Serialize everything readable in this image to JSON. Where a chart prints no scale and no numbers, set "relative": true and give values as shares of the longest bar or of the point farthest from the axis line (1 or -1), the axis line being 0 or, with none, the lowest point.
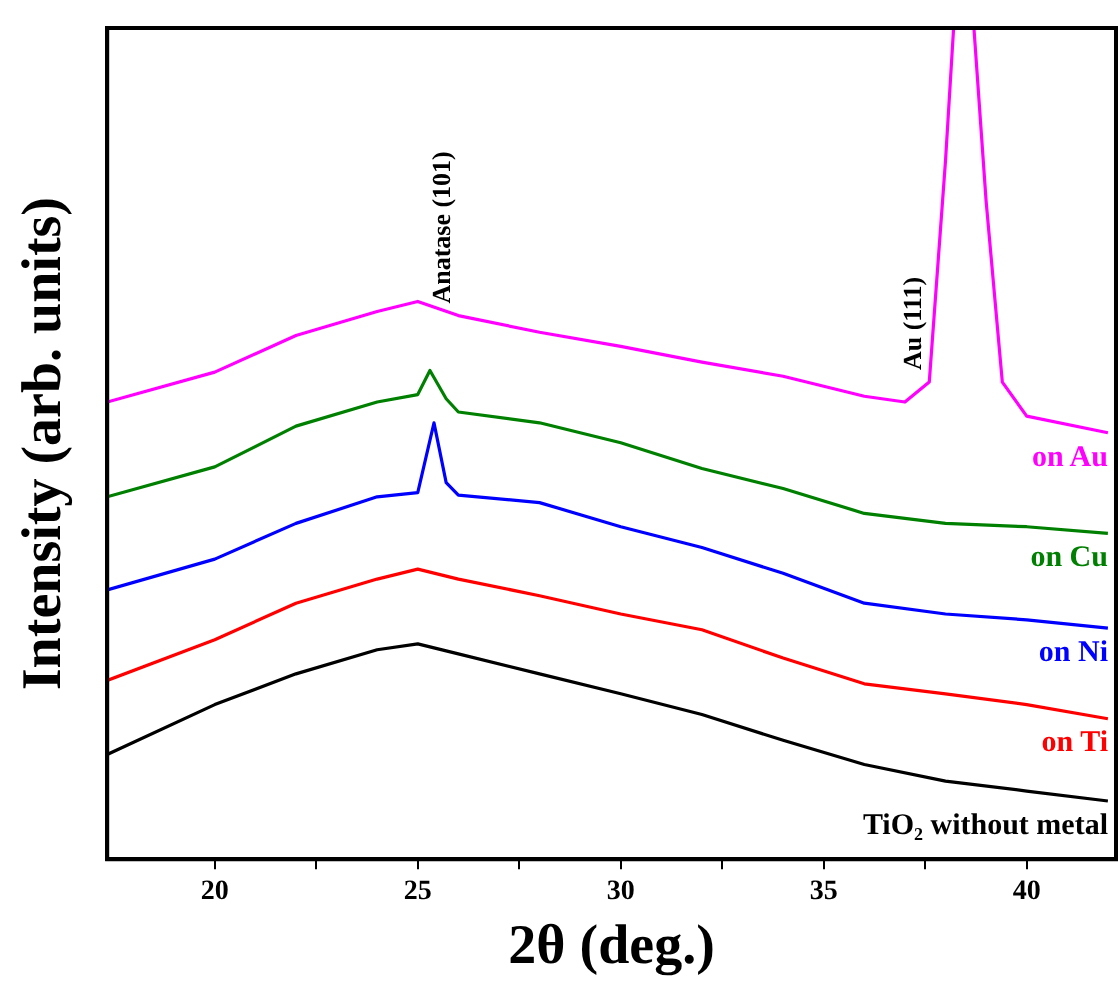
{
  "chart_data": {
    "type": "line",
    "relative": true,
    "xlabel": "2θ (deg.)",
    "ylabel": "Intensity (arb. units)",
    "xlim": [
      17.35,
      42.2
    ],
    "xticks": [
      20,
      {
        "value": 22.5,
        "label": null
      },
      25,
      {
        "value": 27.5,
        "label": null
      },
      30,
      {
        "value": 32.5,
        "label": null
      },
      35,
      {
        "value": 37.5,
        "label": null
      },
      40
    ],
    "tick_labels": "x",
    "grid": false,
    "legend": false,
    "marker": "none",
    "line_style": "solid",
    "annotations": [
      {
        "text": "Anatase (101)",
        "x": 26,
        "y": 0.654
      },
      {
        "text": "Au (111)",
        "x": 37.6,
        "y": 0.574
      }
    ],
    "series": [
      {
        "name": "on Au",
        "color": "#ff00ff",
        "x": [
          17.35,
          20,
          22,
          24,
          25,
          26,
          28,
          30,
          32,
          34,
          36,
          37,
          37.6,
          38,
          38.2,
          38.7,
          39,
          39.4,
          40,
          42
        ],
        "values": [
          0.55,
          0.586,
          0.63,
          0.659,
          0.671,
          0.654,
          0.634,
          0.617,
          0.598,
          0.581,
          0.557,
          0.55,
          0.574,
          0.84,
          1,
          1,
          0.792,
          0.574,
          0.533,
          0.513
        ]
      },
      {
        "name": "on Cu",
        "color": "#008000",
        "x": [
          17.35,
          20,
          22,
          24,
          25,
          25.3,
          25.7,
          26,
          28,
          30,
          32,
          34,
          36,
          38,
          40,
          42
        ],
        "values": [
          0.436,
          0.472,
          0.521,
          0.55,
          0.559,
          0.588,
          0.554,
          0.538,
          0.525,
          0.501,
          0.47,
          0.446,
          0.416,
          0.404,
          0.4,
          0.392
        ]
      },
      {
        "name": "on Ni",
        "color": "#0000ff",
        "x": [
          17.35,
          20,
          22,
          24,
          25,
          25.4,
          25.7,
          26,
          28,
          30,
          32,
          34,
          36,
          38,
          40,
          42
        ],
        "values": [
          0.324,
          0.361,
          0.404,
          0.436,
          0.441,
          0.525,
          0.453,
          0.438,
          0.429,
          0.4,
          0.375,
          0.344,
          0.308,
          0.295,
          0.288,
          0.278
        ]
      },
      {
        "name": "on Ti",
        "color": "#ff0000",
        "x": [
          17.35,
          20,
          22,
          24,
          25,
          26,
          28,
          30,
          32,
          34,
          36,
          38,
          40,
          42
        ],
        "values": [
          0.215,
          0.264,
          0.308,
          0.337,
          0.349,
          0.337,
          0.317,
          0.295,
          0.276,
          0.242,
          0.211,
          0.199,
          0.186,
          0.169
        ]
      },
      {
        "name": "TiO₂ without metal",
        "color": "#000000",
        "x": [
          17.35,
          20,
          22,
          24,
          25,
          26,
          28,
          30,
          32,
          34,
          36,
          38,
          40,
          42
        ],
        "values": [
          0.126,
          0.186,
          0.223,
          0.252,
          0.259,
          0.247,
          0.223,
          0.199,
          0.174,
          0.143,
          0.114,
          0.094,
          0.082,
          0.07
        ]
      }
    ]
  }
}
